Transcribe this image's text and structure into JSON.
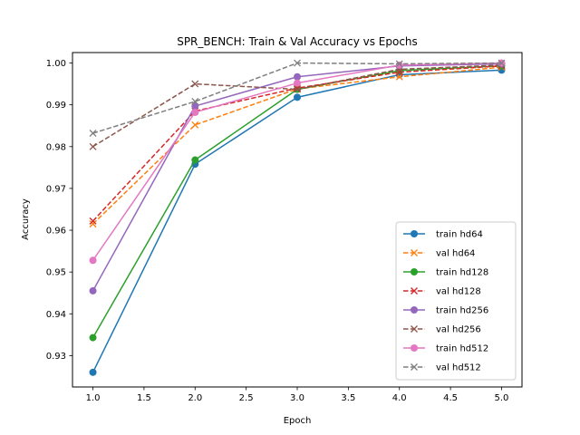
{
  "chart_data": {
    "type": "line",
    "title": "SPR_BENCH: Train & Val Accuracy vs Epochs",
    "xlabel": "Epoch",
    "ylabel": "Accuracy",
    "xlim": [
      0.8,
      5.2
    ],
    "ylim": [
      0.9225,
      1.0025
    ],
    "x_ticks": [
      1.0,
      1.5,
      2.0,
      2.5,
      3.0,
      3.5,
      4.0,
      4.5,
      5.0
    ],
    "x_tick_labels": [
      "1.0",
      "1.5",
      "2.0",
      "2.5",
      "3.0",
      "3.5",
      "4.0",
      "4.5",
      "5.0"
    ],
    "y_ticks": [
      0.93,
      0.94,
      0.95,
      0.96,
      0.97,
      0.98,
      0.99,
      1.0
    ],
    "y_tick_labels": [
      "0.93",
      "0.94",
      "0.95",
      "0.96",
      "0.97",
      "0.98",
      "0.99",
      "1.00"
    ],
    "grid": false,
    "legend_position": "lower-right",
    "x": [
      1,
      2,
      3,
      4,
      5
    ],
    "series": [
      {
        "name": "train hd64",
        "values": [
          0.926,
          0.9758,
          0.9918,
          0.9972,
          0.9983
        ],
        "color": "#1f77b4",
        "linestyle": "solid",
        "marker": "circle"
      },
      {
        "name": "val hd64",
        "values": [
          0.9615,
          0.9852,
          0.9938,
          0.9967,
          0.999
        ],
        "color": "#ff7f0e",
        "linestyle": "dashed",
        "marker": "x"
      },
      {
        "name": "train hd128",
        "values": [
          0.9343,
          0.9768,
          0.9937,
          0.9982,
          0.9993
        ],
        "color": "#2ca02c",
        "linestyle": "solid",
        "marker": "circle"
      },
      {
        "name": "val hd128",
        "values": [
          0.9622,
          0.9885,
          0.994,
          0.9978,
          0.9993
        ],
        "color": "#d62728",
        "linestyle": "dashed",
        "marker": "x"
      },
      {
        "name": "train hd256",
        "values": [
          0.9455,
          0.9897,
          0.9967,
          0.9993,
          0.9998
        ],
        "color": "#9467bd",
        "linestyle": "solid",
        "marker": "circle"
      },
      {
        "name": "val hd256",
        "values": [
          0.98,
          0.995,
          0.9937,
          0.9985,
          0.9995
        ],
        "color": "#8c564b",
        "linestyle": "dashed",
        "marker": "x"
      },
      {
        "name": "train hd512",
        "values": [
          0.9528,
          0.9882,
          0.9952,
          0.9995,
          1.0
        ],
        "color": "#e377c2",
        "linestyle": "solid",
        "marker": "circle"
      },
      {
        "name": "val hd512",
        "values": [
          0.9832,
          0.9908,
          1.0,
          0.9998,
          1.0
        ],
        "color": "#7f7f7f",
        "linestyle": "dashed",
        "marker": "x"
      }
    ]
  }
}
